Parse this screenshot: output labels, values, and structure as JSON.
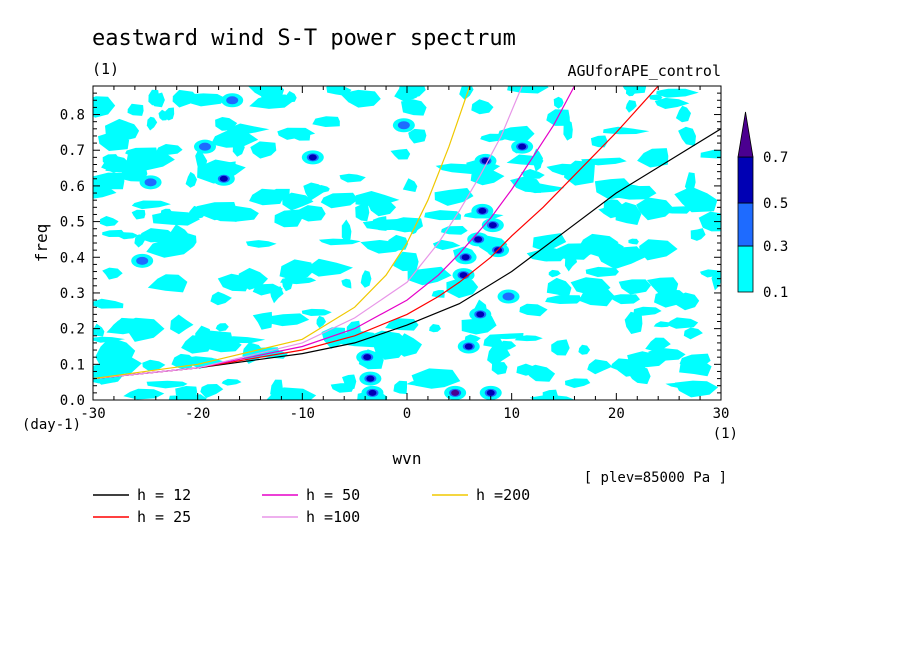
{
  "chart_data": {
    "type": "heatmap",
    "title": "eastward wind S-T power spectrum",
    "units_label": "(1)",
    "experiment": "AGUforAPE_control",
    "xlabel": "wvn",
    "ylabel": "freq",
    "x_unit": "(1)",
    "y_unit": "(day-1)",
    "xlim": [
      -30,
      30
    ],
    "ylim": [
      0,
      0.88
    ],
    "x_ticks": [
      "-30",
      "-20",
      "-10",
      "0",
      "10",
      "20",
      "30"
    ],
    "y_ticks": [
      "0.0",
      "0.1",
      "0.2",
      "0.3",
      "0.4",
      "0.5",
      "0.6",
      "0.7",
      "0.8"
    ],
    "annotation": "[ plev=85000 Pa ]",
    "colorbar": {
      "levels": [
        "0.1",
        "0.3",
        "0.5",
        "0.7"
      ],
      "colors": [
        "#00ffff",
        "#1e6bff",
        "#0000b4",
        "#4b0090"
      ]
    },
    "series": [
      {
        "name": "h = 12",
        "color": "#000000",
        "x": [
          -30,
          -20,
          -10,
          -5,
          0,
          5,
          10,
          15,
          20,
          25,
          30
        ],
        "y": [
          0.06,
          0.09,
          0.13,
          0.16,
          0.21,
          0.27,
          0.36,
          0.47,
          0.58,
          0.67,
          0.76
        ]
      },
      {
        "name": "h = 25",
        "color": "#ff0000",
        "x": [
          -30,
          -20,
          -10,
          -5,
          0,
          3,
          5,
          8,
          10,
          13,
          15,
          18,
          20,
          24
        ],
        "y": [
          0.06,
          0.09,
          0.14,
          0.18,
          0.24,
          0.29,
          0.33,
          0.4,
          0.46,
          0.54,
          0.6,
          0.69,
          0.75,
          0.88
        ]
      },
      {
        "name": "h = 50",
        "color": "#e600c8",
        "x": [
          -30,
          -20,
          -10,
          -5,
          0,
          3,
          5,
          8,
          10,
          12,
          14,
          16
        ],
        "y": [
          0.06,
          0.09,
          0.15,
          0.2,
          0.28,
          0.35,
          0.41,
          0.51,
          0.59,
          0.68,
          0.77,
          0.88
        ]
      },
      {
        "name": "h =100",
        "color": "#e896e8",
        "x": [
          -30,
          -20,
          -10,
          -5,
          0,
          3,
          5,
          7,
          9,
          11
        ],
        "y": [
          0.06,
          0.09,
          0.16,
          0.23,
          0.33,
          0.44,
          0.53,
          0.63,
          0.74,
          0.88
        ]
      },
      {
        "name": "h =200",
        "color": "#f0c800",
        "x": [
          -30,
          -20,
          -10,
          -5,
          -2,
          0,
          2,
          4,
          6
        ],
        "y": [
          0.06,
          0.1,
          0.17,
          0.26,
          0.35,
          0.44,
          0.56,
          0.71,
          0.88
        ]
      }
    ],
    "blobs": [
      {
        "x": -3.3,
        "y": 0.02,
        "v": 0.5
      },
      {
        "x": 4.6,
        "y": 0.02,
        "v": 0.7
      },
      {
        "x": 8.0,
        "y": 0.02,
        "v": 0.5
      },
      {
        "x": -3.8,
        "y": 0.12,
        "v": 0.5
      },
      {
        "x": -3.5,
        "y": 0.06,
        "v": 0.5
      },
      {
        "x": 5.9,
        "y": 0.15,
        "v": 0.5
      },
      {
        "x": 7.0,
        "y": 0.24,
        "v": 0.5
      },
      {
        "x": 5.4,
        "y": 0.35,
        "v": 0.5
      },
      {
        "x": 5.6,
        "y": 0.4,
        "v": 0.5
      },
      {
        "x": 8.7,
        "y": 0.42,
        "v": 0.5
      },
      {
        "x": 6.8,
        "y": 0.45,
        "v": 0.5
      },
      {
        "x": 7.2,
        "y": 0.53,
        "v": 0.5
      },
      {
        "x": 8.2,
        "y": 0.49,
        "v": 0.5
      },
      {
        "x": 7.5,
        "y": 0.67,
        "v": 0.5
      },
      {
        "x": 11.0,
        "y": 0.71,
        "v": 0.5
      },
      {
        "x": -9.0,
        "y": 0.68,
        "v": 0.5
      },
      {
        "x": -17.5,
        "y": 0.62,
        "v": 0.5
      },
      {
        "x": -24.5,
        "y": 0.61,
        "v": 0.3
      },
      {
        "x": -16.7,
        "y": 0.84,
        "v": 0.3
      },
      {
        "x": -19.3,
        "y": 0.71,
        "v": 0.3
      },
      {
        "x": -0.3,
        "y": 0.77,
        "v": 0.3
      },
      {
        "x": -25.3,
        "y": 0.39,
        "v": 0.3
      },
      {
        "x": 9.7,
        "y": 0.29,
        "v": 0.3
      }
    ]
  },
  "legend_title": ""
}
